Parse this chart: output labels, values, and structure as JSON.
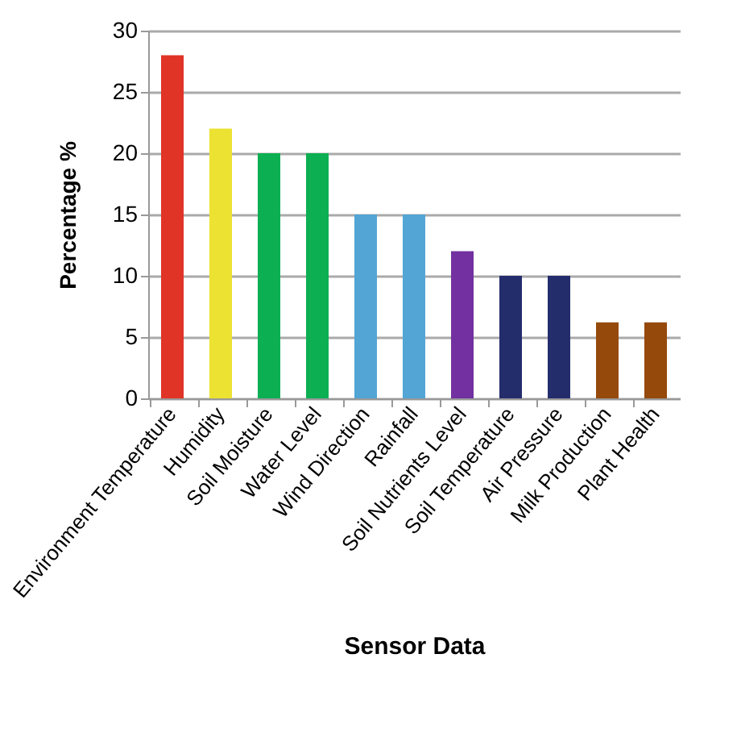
{
  "chart_data": {
    "type": "bar",
    "xlabel": "Sensor Data",
    "ylabel": "Percentage %",
    "categories": [
      "Environment Temperature",
      "Humidity",
      "Soil Moisture",
      "Water Level",
      "Wind Direction",
      "Rainfall",
      "Soil Nutrients Level",
      "Soil Temperature",
      "Air Pressure",
      "Milk Production",
      "Plant Health"
    ],
    "values": [
      28,
      22,
      20,
      20,
      15,
      15,
      12,
      10,
      10,
      6.2,
      6.2
    ],
    "colors": [
      "#e03427",
      "#ece232",
      "#0caf51",
      "#0caf51",
      "#52a5d4",
      "#52a5d4",
      "#7230a0",
      "#242d6c",
      "#242d6c",
      "#95490b",
      "#95490b"
    ],
    "ylim": [
      0,
      30
    ],
    "yticks": [
      0,
      5,
      10,
      15,
      20,
      25,
      30
    ],
    "grid": "y"
  }
}
